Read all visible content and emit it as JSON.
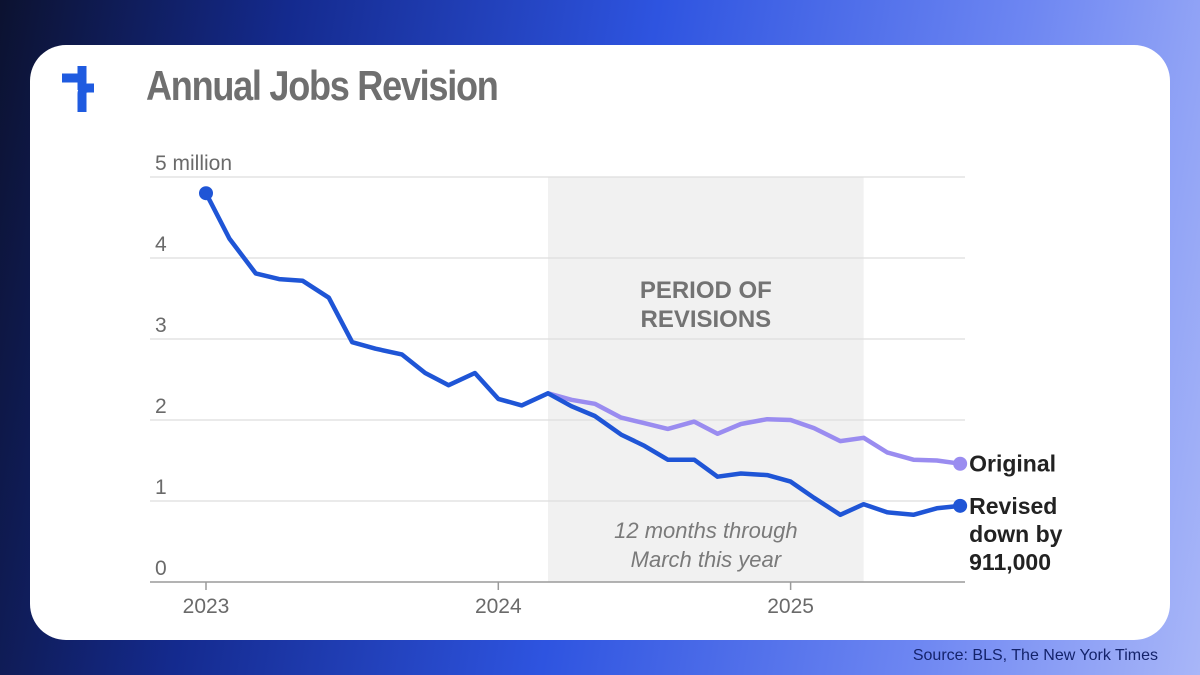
{
  "header": {
    "title": "Annual Jobs Revision",
    "logo_icon": "brand-logo-icon",
    "logo_color": "#1f5be0"
  },
  "footer": {
    "source": "Source: BLS, The New York Times"
  },
  "colors": {
    "original": "#9a8cf0",
    "revised": "#1f55d6",
    "shade": "#f1f1f1",
    "grid": "#dedede",
    "axis_text": "#6a6a6a",
    "label_text": "#222222"
  },
  "chart_data": {
    "type": "line",
    "x_unit": "year",
    "xlim": [
      2023.0,
      2025.6
    ],
    "ylim": [
      0,
      5
    ],
    "y_ticks": [
      {
        "value": 0,
        "label": "0"
      },
      {
        "value": 1,
        "label": "1"
      },
      {
        "value": 2,
        "label": "2"
      },
      {
        "value": 3,
        "label": "3"
      },
      {
        "value": 4,
        "label": "4"
      },
      {
        "value": 5,
        "label": "5 million"
      }
    ],
    "x_ticks": [
      {
        "value": 2023,
        "label": "2023"
      },
      {
        "value": 2024,
        "label": "2024"
      },
      {
        "value": 2025,
        "label": "2025"
      }
    ],
    "grid": true,
    "shaded_region": {
      "x": [
        2024.17,
        2025.25
      ],
      "title_lines": [
        "PERIOD OF",
        "REVISIONS"
      ],
      "note_lines": [
        "12 months through",
        "March this year"
      ]
    },
    "series": [
      {
        "name": "Original",
        "label_lines": [
          "Original"
        ],
        "x": [
          2024.17,
          2024.25,
          2024.33,
          2024.42,
          2024.5,
          2024.58,
          2024.67,
          2024.75,
          2024.83,
          2024.92,
          2025.0,
          2025.08,
          2025.17,
          2025.25,
          2025.33,
          2025.42,
          2025.5,
          2025.58
        ],
        "y": [
          2.33,
          2.25,
          2.2,
          2.03,
          1.96,
          1.89,
          1.98,
          1.83,
          1.95,
          2.01,
          2.0,
          1.9,
          1.74,
          1.78,
          1.6,
          1.51,
          1.5,
          1.46
        ]
      },
      {
        "name": "Revised down by 911,000",
        "label_lines": [
          "Revised",
          "down by",
          "911,000"
        ],
        "x": [
          2023.0,
          2023.08,
          2023.17,
          2023.25,
          2023.33,
          2023.42,
          2023.5,
          2023.58,
          2023.67,
          2023.75,
          2023.83,
          2023.92,
          2024.0,
          2024.08,
          2024.17,
          2024.25,
          2024.33,
          2024.42,
          2024.5,
          2024.58,
          2024.67,
          2024.75,
          2024.83,
          2024.92,
          2025.0,
          2025.08,
          2025.17,
          2025.25,
          2025.33,
          2025.42,
          2025.5,
          2025.58
        ],
        "y": [
          4.8,
          4.24,
          3.81,
          3.74,
          3.72,
          3.51,
          2.96,
          2.88,
          2.81,
          2.58,
          2.43,
          2.58,
          2.26,
          2.18,
          2.33,
          2.17,
          2.05,
          1.82,
          1.68,
          1.51,
          1.51,
          1.3,
          1.34,
          1.32,
          1.24,
          1.04,
          0.83,
          0.96,
          0.86,
          0.83,
          0.91,
          0.94
        ]
      }
    ]
  }
}
